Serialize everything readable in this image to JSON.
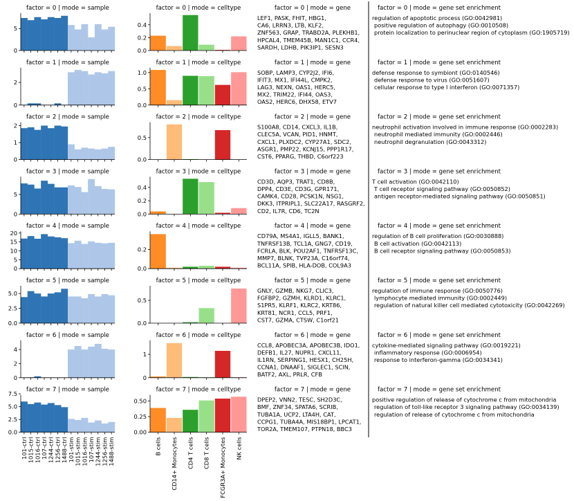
{
  "figure": {
    "sample_x_labels": [
      "101-ctrl",
      "1015-ctrl",
      "1016-ctrl",
      "107-ctrl",
      "1244-ctrl",
      "1256-ctrl",
      "1488-ctrl",
      "101-stim",
      "1015-stim",
      "1016-stim",
      "107-stim",
      "1244-stim",
      "1256-stim",
      "1488-stim"
    ],
    "celltype_x_labels": [
      "B cells",
      "CD14+ Monocytes",
      "CD4 T cells",
      "CD8 T cells",
      "FCGR3A+ Monocytes",
      "NK cells"
    ],
    "colors": {
      "ctrl": "#2f75b5",
      "stim": "#aec7e8",
      "celltypes": [
        "#ff8c25",
        "#ffbb78",
        "#2ca02c",
        "#98df8a",
        "#d62728",
        "#ff9896"
      ]
    }
  },
  "chart_data": [
    {
      "factor": 0,
      "sample": {
        "title": "factor = 0 | mode = sample",
        "type": "bar",
        "yticks": [
          "0",
          "5"
        ],
        "ylim": [
          0,
          8.5
        ],
        "values": [
          7.4,
          6.9,
          7.6,
          7.1,
          7.6,
          7.4,
          7.9,
          5.8,
          4.8,
          6.0,
          3.0,
          6.0,
          4.8,
          5.4
        ]
      },
      "celltype": {
        "title": "factor = 0 | mode = celltype",
        "type": "bar",
        "yticks": [
          "0.0",
          "0.2",
          "0.4"
        ],
        "ylim": [
          0,
          0.58
        ],
        "values": [
          0.23,
          0.07,
          0.55,
          0.09,
          0.01,
          0.22
        ]
      },
      "gene": {
        "title": "factor = 0 | mode = gene",
        "lines": [
          "LEF1, PASK, FHIT, HBG1,",
          "CA6, LRRN3, LTB, KLF2,",
          "ZNF563, GRAP, TRABD2A, PLEKHB1,",
          "HPCAL4, TMEM45B, MAN1C1, CCR4,",
          "SARDH, LDHB, PIK3IP1, SESN3"
        ]
      },
      "enrichment": {
        "title": "factor = 0 | mode = gene set enrichment",
        "lines": [
          "regulation of apoptotic process (GO:0042981)",
          "positive regulation of autophagy (GO:0010508)",
          "protein localization to perinuclear region of cytoplasm (GO:1905719)"
        ]
      }
    },
    {
      "factor": 1,
      "sample": {
        "title": "factor = 1 | mode = sample",
        "type": "bar",
        "yticks": [
          "0",
          "2"
        ],
        "ylim": [
          0,
          3.3
        ],
        "values": [
          0.0,
          0.15,
          0.15,
          0.0,
          0.0,
          0.15,
          0.0,
          2.9,
          3.1,
          3.0,
          2.7,
          2.9,
          2.8,
          3.0
        ]
      },
      "celltype": {
        "title": "factor = 1 | mode = celltype",
        "type": "bar",
        "yticks": [
          "0.0",
          "0.5",
          "1.0"
        ],
        "ylim": [
          0,
          1.15
        ],
        "values": [
          1.08,
          0.15,
          0.9,
          0.89,
          0.62,
          1.01
        ]
      },
      "gene": {
        "title": "factor = 1 | mode = gene",
        "lines": [
          "SOBP, LAMP3, CYP2J2, IFI6,",
          "IFIT3, MX1, IFI44L, CMPK2,",
          "LAG3, NEXN, OAS1, HERC5,",
          "MX2, TRIM22, IFI44, OAS3,",
          "OAS2, HERC6, DHX58, ETV7"
        ]
      },
      "enrichment": {
        "title": "factor = 1 | mode = gene set enrichment",
        "lines": [
          "defense response to symbiont (GO:0140546)",
          "defense response to virus (GO:0051607)",
          "cellular response to type I interferon (GO:0071357)"
        ]
      }
    },
    {
      "factor": 2,
      "sample": {
        "title": "factor = 2 | mode = sample",
        "type": "bar",
        "yticks": [
          "0",
          "1",
          "2"
        ],
        "ylim": [
          0,
          2.2
        ],
        "values": [
          1.85,
          1.9,
          1.75,
          2.0,
          1.85,
          2.0,
          1.95,
          0.9,
          0.6,
          0.7,
          0.65,
          0.6,
          0.65,
          0.75
        ]
      },
      "celltype": {
        "title": "factor = 2 | mode = celltype",
        "type": "bar",
        "yticks": [
          "0.0",
          "0.5"
        ],
        "ylim": [
          0,
          0.85
        ],
        "values": [
          0.0,
          0.8,
          0.01,
          0.0,
          0.67,
          0.0
        ]
      },
      "gene": {
        "title": "factor = 2 | mode = gene",
        "lines": [
          "S100A8, CD14, CXCL3, IL1B,",
          "CLEC5A, VCAN, PID1, HNMT,",
          "CXCL1, PLXDC2, CYP27A1, SDC2,",
          "ASGR1, PMP22, KCNJ15, PPP1R17,",
          "CST6, PPARG, THBD, C6orf223"
        ]
      },
      "enrichment": {
        "title": "factor = 2 | mode = gene set enrichment",
        "lines": [
          "neutrophil activation involved in immune response (GO:0002283)",
          "neutrophil mediated immunity (GO:0002446)",
          "neutrophil degranulation (GO:0043312)"
        ]
      }
    },
    {
      "factor": 3,
      "sample": {
        "title": "factor = 3 | mode = sample",
        "type": "bar",
        "yticks": [
          "0",
          "5"
        ],
        "ylim": [
          0,
          9.5
        ],
        "values": [
          7.8,
          7.5,
          6.5,
          8.5,
          7.7,
          6.8,
          6.8,
          7.3,
          6.9,
          5.6,
          8.9,
          7.1,
          6.4,
          6.3
        ]
      },
      "celltype": {
        "title": "factor = 3 | mode = celltype",
        "type": "bar",
        "yticks": [
          "0.0",
          "0.2",
          "0.4"
        ],
        "ylim": [
          0,
          0.56
        ],
        "values": [
          0.04,
          0.0,
          0.53,
          0.48,
          0.02,
          0.09
        ]
      },
      "gene": {
        "title": "factor = 3 | mode = gene",
        "lines": [
          "CD3D, AQP3, TRAT1, CD8B,",
          "DPP4, CD3E, CD3G, GPR171,",
          "CAMK4, CD28, PCSK1N, NSG1,",
          "DKK3, ITPRIPL1, SLC22A17, RASGRF2,",
          "CD2, IL7R, CD6, TC2N"
        ]
      },
      "enrichment": {
        "title": "factor = 3 | mode = gene set enrichment",
        "lines": [
          "T cell activation (GO:0042110)",
          "T cell receptor signaling pathway (GO:0050852)",
          "antigen receptor-mediated signaling pathway (GO:0050851)"
        ]
      }
    },
    {
      "factor": 4,
      "sample": {
        "title": "factor = 4 | mode = sample",
        "type": "bar",
        "yticks": [
          "0",
          "5",
          "10",
          "15",
          "20"
        ],
        "ylim": [
          0,
          21
        ],
        "values": [
          16.9,
          18.3,
          16.8,
          19.4,
          18.1,
          17.6,
          17.1,
          14.3,
          15.7,
          13.9,
          15.3,
          14.5,
          14.2,
          14.5
        ]
      },
      "celltype": {
        "title": "factor = 4 | mode = celltype",
        "type": "bar",
        "yticks": [
          "0.0",
          "0.2"
        ],
        "ylim": [
          0,
          0.39
        ],
        "values": [
          0.36,
          0.01,
          0.02,
          0.03,
          0.02,
          0.01
        ]
      },
      "gene": {
        "title": "factor = 4 | mode = gene",
        "lines": [
          "CD79A, MS4A1, IGLL5, BANK1,",
          "TNFRSF13B, TCL1A, GNG7, CD19,",
          "FCRLA, BLK, POU2AF1, TNFRSF13C,",
          "MMP7, BLNK, TVP23A, C16orf74,",
          "BCL11A, SPIB, HLA-DOB, COL9A3"
        ]
      },
      "enrichment": {
        "title": "factor = 4 | mode = gene set enrichment",
        "lines": [
          "regulation of B cell proliferation (GO:0030888)",
          "B cell activation (GO:0042113)",
          "B cell receptor signaling pathway (GO:0050853)"
        ]
      }
    },
    {
      "factor": 5,
      "sample": {
        "title": "factor = 5 | mode = sample",
        "type": "bar",
        "yticks": [
          "0.0",
          "2.5",
          "5.0"
        ],
        "ylim": [
          0,
          6.3
        ],
        "values": [
          4.4,
          5.4,
          5.0,
          4.5,
          5.0,
          5.2,
          5.8,
          4.5,
          4.5,
          4.2,
          4.9,
          4.5,
          4.9,
          4.7
        ]
      },
      "celltype": {
        "title": "factor = 5 | mode = celltype",
        "type": "bar",
        "yticks": [
          "0.0",
          "0.5"
        ],
        "ylim": [
          0,
          0.82
        ],
        "values": [
          0.0,
          0.0,
          0.02,
          0.33,
          0.0,
          0.76
        ]
      },
      "gene": {
        "title": "factor = 5 | mode = gene",
        "lines": [
          "GNLY, GZMB, NKG7, CLIC3,",
          "FGFBP2, GZMH, KLRD1, KLRC1,",
          "S1PR5, KLRF1, KLRC2, KRT86,",
          "KRT81, NCR1, CCL5, PRF1,",
          "CST7, GZMA, CTSW, C1orf21"
        ]
      },
      "enrichment": {
        "title": "factor = 5 | mode = gene set enrichment",
        "lines": [
          "regulation of immune response (GO:0050776)",
          "lymphocyte mediated immunity (GO:0002449)",
          "regulation of natural killer cell mediated cytotoxicity (GO:0042269)"
        ]
      }
    },
    {
      "factor": 6,
      "sample": {
        "title": "factor = 6 | mode = sample",
        "type": "bar",
        "yticks": [
          "0",
          "2",
          "4"
        ],
        "ylim": [
          0,
          5.3
        ],
        "values": [
          0.0,
          0.05,
          0.2,
          0.0,
          0.0,
          0.0,
          0.0,
          4.0,
          4.5,
          4.0,
          4.4,
          4.8,
          4.1,
          4.0
        ]
      },
      "celltype": {
        "title": "factor = 6 | mode = celltype",
        "type": "bar",
        "yticks": [
          "0",
          "1"
        ],
        "ylim": [
          0,
          1.6
        ],
        "values": [
          0.05,
          1.48,
          0.03,
          0.02,
          1.15,
          0.02
        ]
      },
      "gene": {
        "title": "factor = 6 | mode = gene",
        "lines": [
          "CCL8, APOBEC3A, APOBEC3B, IDO1,",
          "DEFB1, IL27, NUPR1, CXCL11,",
          "IL1RN, SERPING1, HESX1, CH25H,",
          "CCNA1, DNAAF1, SIGLEC1, SCIN,",
          "BATF2, AXL, PRLR, CFB"
        ]
      },
      "enrichment": {
        "title": "factor = 6 | mode = gene set enrichment",
        "lines": [
          "cytokine-mediated signaling pathway (GO:0019221)",
          "inflammatory response (GO:0006954)",
          "response to interferon-gamma (GO:0034341)"
        ]
      }
    },
    {
      "factor": 7,
      "sample": {
        "title": "factor = 7 | mode = sample",
        "type": "bar",
        "yticks": [
          "0.0",
          "2.5",
          "5.0",
          "7.5"
        ],
        "ylim": [
          0,
          7.3
        ],
        "values": [
          6.0,
          5.5,
          5.8,
          5.4,
          5.7,
          5.3,
          4.9,
          2.6,
          2.4,
          2.8,
          1.9,
          2.3,
          1.7,
          2.0
        ]
      },
      "celltype": {
        "title": "factor = 7 | mode = celltype",
        "type": "bar",
        "yticks": [
          "0.00",
          "0.25",
          "0.50"
        ],
        "ylim": [
          0,
          0.6
        ],
        "values": [
          0.39,
          0.23,
          0.36,
          0.51,
          0.54,
          0.57
        ]
      },
      "gene": {
        "title": "factor = 7 | mode = gene",
        "lines": [
          "DPEP2, VNN2, TESC, SH2D3C,",
          "BMF, ZNF34, SPATA6, SCRIB,",
          "TUBA1A, UCP2, LTA4H, CAT,",
          "CCPG1, TUBA4A, MIS18BP1, LPCAT1,",
          "TOR2A, TMEM107, PTPN18, BBC3"
        ]
      },
      "enrichment": {
        "title": "factor = 7 | mode = gene set enrichment",
        "lines": [
          "positive regulation of release of cytochrome c from mitochondria",
          "regulation of toll-like receptor 3 signaling pathway (GO:0034139)",
          "regulation of release of cytochrome c from mitochondria"
        ]
      }
    }
  ]
}
